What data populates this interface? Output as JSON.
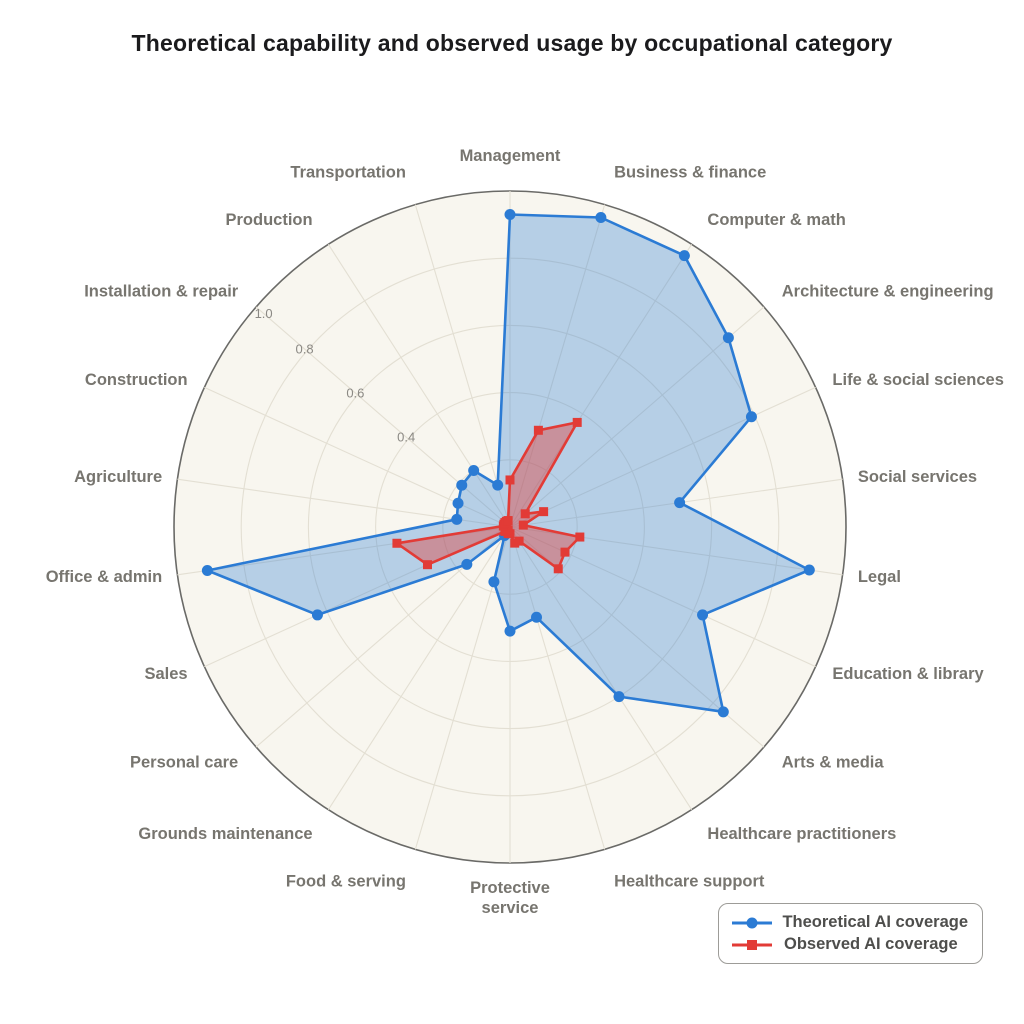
{
  "chart_data": {
    "type": "radar",
    "title": "Theoretical capability and observed usage by occupational category",
    "categories": [
      "Management",
      "Business & finance",
      "Computer & math",
      "Architecture & engineering",
      "Life & social sciences",
      "Social services",
      "Legal",
      "Education & library",
      "Arts & media",
      "Healthcare practitioners",
      "Healthcare support",
      "Protective service",
      "Food & serving",
      "Grounds maintenance",
      "Personal care",
      "Sales",
      "Office & admin",
      "Agriculture",
      "Construction",
      "Installation & repair",
      "Production",
      "Transportation"
    ],
    "series": [
      {
        "name": "Theoretical AI coverage",
        "marker": "circle",
        "color": "#2b7bd4",
        "fill_opacity": 0.32,
        "values": [
          0.93,
          0.96,
          0.96,
          0.86,
          0.79,
          0.51,
          0.9,
          0.63,
          0.84,
          0.6,
          0.28,
          0.31,
          0.17,
          0.03,
          0.17,
          0.63,
          0.91,
          0.16,
          0.17,
          0.19,
          0.2,
          0.13
        ]
      },
      {
        "name": "Observed AI coverage",
        "marker": "square",
        "color": "#e23b36",
        "fill_opacity": 0.42,
        "values": [
          0.14,
          0.3,
          0.37,
          0.06,
          0.11,
          0.04,
          0.21,
          0.18,
          0.19,
          0.05,
          0.05,
          0.02,
          0.02,
          0.01,
          0.02,
          0.27,
          0.34,
          0.02,
          0.02,
          0.02,
          0.02,
          0.02
        ]
      }
    ],
    "radial_ticks": [
      "0.4",
      "0.6",
      "0.8",
      "1.0"
    ],
    "radial_tick_values": [
      0.4,
      0.6,
      0.8,
      1.0
    ],
    "grid_ring_values": [
      0.2,
      0.4,
      0.6,
      0.8,
      1.0
    ],
    "radial_range": [
      0,
      1.0
    ],
    "legend_position": "bottom-right",
    "grid": "on",
    "colors": {
      "plot_background": "#f8f6ef",
      "grid_line": "#e3dfd3",
      "outer_border": "#6a6a67",
      "category_label": "#77756f",
      "tick_label": "#8b8984",
      "title": "#1b1b1d"
    }
  }
}
